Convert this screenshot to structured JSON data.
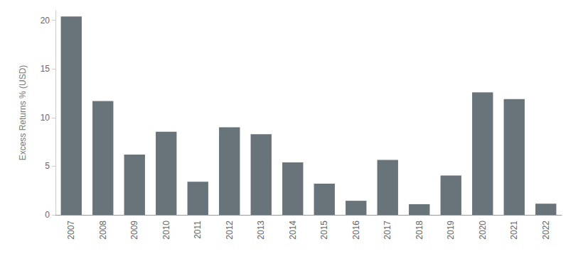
{
  "chart_data": {
    "type": "bar",
    "y_label": "Excess Returns % (USD)",
    "categories": [
      "2007",
      "2008",
      "2009",
      "2010",
      "2011",
      "2012",
      "2013",
      "2014",
      "2015",
      "2016",
      "2017",
      "2018",
      "2019",
      "2020",
      "2021",
      "2022"
    ],
    "values": [
      20.4,
      11.7,
      6.2,
      8.55,
      3.4,
      9.0,
      8.3,
      5.4,
      3.2,
      1.45,
      5.65,
      1.1,
      4.05,
      12.6,
      11.9,
      1.15
    ],
    "color": "#69737a",
    "ylim": [
      0,
      21
    ],
    "yticks": [
      0,
      5,
      10,
      15,
      20
    ],
    "grid": false
  }
}
